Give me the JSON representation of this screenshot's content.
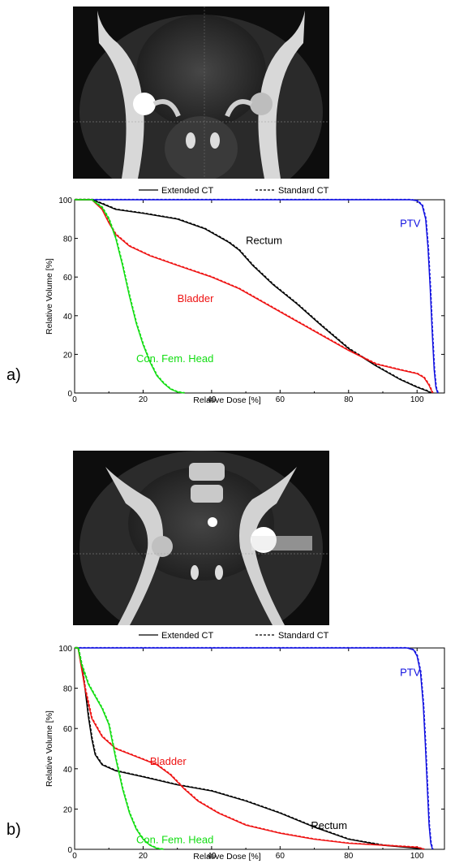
{
  "colors": {
    "PTV": "#1010e0",
    "Rectum": "#000000",
    "Bladder": "#ee1111",
    "Con. Fem. Head": "#11dd11"
  },
  "images": {
    "a": {
      "description_icon": "ct-coronal-scan-icon"
    },
    "b": {
      "description_icon": "ct-coronal-scan-icon"
    }
  },
  "chart_data": [
    {
      "type": "line",
      "panel_label": "a)",
      "xlabel": "Relative Dose [%]",
      "ylabel": "Relative Volume [%]",
      "xlim": [
        0,
        108
      ],
      "ylim": [
        0,
        100
      ],
      "xticks": [
        0,
        20,
        40,
        60,
        80,
        100
      ],
      "yticks": [
        0,
        20,
        40,
        60,
        80,
        100
      ],
      "legend": [
        {
          "label": "Extended CT",
          "style": "solid"
        },
        {
          "label": "Standard CT",
          "style": "dashed"
        }
      ],
      "series": [
        {
          "name": "PTV",
          "label_pos": [
            95,
            86
          ],
          "points": [
            [
              0,
              100
            ],
            [
              98,
              100
            ],
            [
              100,
              99.5
            ],
            [
              101.5,
              97
            ],
            [
              102.5,
              90
            ],
            [
              103.2,
              75
            ],
            [
              103.8,
              55
            ],
            [
              104.4,
              32
            ],
            [
              105,
              12
            ],
            [
              105.5,
              3
            ],
            [
              106,
              0
            ]
          ]
        },
        {
          "name": "Rectum",
          "label_pos": [
            50,
            77
          ],
          "points": [
            [
              0,
              100
            ],
            [
              5,
              100
            ],
            [
              8,
              98
            ],
            [
              12,
              95
            ],
            [
              20,
              93
            ],
            [
              30,
              90
            ],
            [
              38,
              85
            ],
            [
              45,
              78
            ],
            [
              48,
              74
            ],
            [
              52,
              66
            ],
            [
              58,
              56
            ],
            [
              65,
              46
            ],
            [
              72,
              35
            ],
            [
              80,
              23
            ],
            [
              88,
              14
            ],
            [
              95,
              7
            ],
            [
              100,
              3
            ],
            [
              103,
              1
            ],
            [
              104,
              0
            ]
          ]
        },
        {
          "name": "Bladder",
          "label_pos": [
            30,
            47
          ],
          "points": [
            [
              0,
              100
            ],
            [
              5,
              100
            ],
            [
              8,
              95
            ],
            [
              10,
              88
            ],
            [
              12,
              82
            ],
            [
              16,
              76
            ],
            [
              22,
              71
            ],
            [
              30,
              66
            ],
            [
              40,
              60
            ],
            [
              48,
              54
            ],
            [
              56,
              46
            ],
            [
              64,
              38
            ],
            [
              72,
              30
            ],
            [
              80,
              22
            ],
            [
              88,
              15
            ],
            [
              95,
              12
            ],
            [
              100,
              10
            ],
            [
              102,
              8
            ],
            [
              103.5,
              4
            ],
            [
              104.5,
              0
            ]
          ]
        },
        {
          "name": "Con. Fem. Head",
          "label_pos": [
            18,
            16
          ],
          "points": [
            [
              0,
              100
            ],
            [
              5,
              100
            ],
            [
              8,
              96
            ],
            [
              10,
              90
            ],
            [
              12,
              80
            ],
            [
              14,
              66
            ],
            [
              16,
              50
            ],
            [
              18,
              36
            ],
            [
              20,
              25
            ],
            [
              22,
              16
            ],
            [
              24,
              9
            ],
            [
              26,
              5
            ],
            [
              28,
              2
            ],
            [
              30,
              0.5
            ],
            [
              32,
              0
            ]
          ]
        }
      ]
    },
    {
      "type": "line",
      "panel_label": "b)",
      "xlabel": "Relative Dose [%]",
      "ylabel": "Relative Volume [%]",
      "xlim": [
        0,
        108
      ],
      "ylim": [
        0,
        100
      ],
      "xticks": [
        0,
        20,
        40,
        60,
        80,
        100
      ],
      "yticks": [
        0,
        20,
        40,
        60,
        80,
        100
      ],
      "legend": [
        {
          "label": "Extended CT",
          "style": "solid"
        },
        {
          "label": "Standard CT",
          "style": "dashed"
        }
      ],
      "series": [
        {
          "name": "PTV",
          "label_pos": [
            95,
            86
          ],
          "points": [
            [
              0,
              100
            ],
            [
              97,
              100
            ],
            [
              99,
              99
            ],
            [
              100,
              96
            ],
            [
              101,
              88
            ],
            [
              101.8,
              72
            ],
            [
              102.4,
              52
            ],
            [
              103,
              30
            ],
            [
              103.5,
              12
            ],
            [
              104,
              3
            ],
            [
              104.5,
              0
            ]
          ]
        },
        {
          "name": "Rectum",
          "label_pos": [
            69,
            10
          ],
          "points": [
            [
              0,
              100
            ],
            [
              1,
              100
            ],
            [
              2,
              92
            ],
            [
              3,
              80
            ],
            [
              4,
              66
            ],
            [
              5,
              55
            ],
            [
              6,
              47
            ],
            [
              8,
              42
            ],
            [
              12,
              39
            ],
            [
              20,
              36
            ],
            [
              30,
              32
            ],
            [
              40,
              29
            ],
            [
              50,
              24
            ],
            [
              60,
              18
            ],
            [
              70,
              11
            ],
            [
              80,
              5
            ],
            [
              90,
              2
            ],
            [
              100,
              0.5
            ],
            [
              102,
              0
            ]
          ]
        },
        {
          "name": "Bladder",
          "label_pos": [
            22,
            42
          ],
          "points": [
            [
              0,
              100
            ],
            [
              1,
              100
            ],
            [
              2,
              90
            ],
            [
              3,
              80
            ],
            [
              5,
              65
            ],
            [
              8,
              56
            ],
            [
              12,
              50
            ],
            [
              18,
              46
            ],
            [
              24,
              42
            ],
            [
              28,
              37
            ],
            [
              32,
              30
            ],
            [
              36,
              24
            ],
            [
              42,
              18
            ],
            [
              50,
              12
            ],
            [
              60,
              8
            ],
            [
              70,
              5
            ],
            [
              80,
              3
            ],
            [
              90,
              2
            ],
            [
              100,
              1
            ],
            [
              102,
              0
            ]
          ]
        },
        {
          "name": "Con. Fem. Head",
          "label_pos": [
            18,
            3
          ],
          "points": [
            [
              0,
              100
            ],
            [
              1,
              100
            ],
            [
              2,
              92
            ],
            [
              4,
              82
            ],
            [
              6,
              76
            ],
            [
              8,
              70
            ],
            [
              10,
              62
            ],
            [
              12,
              45
            ],
            [
              14,
              30
            ],
            [
              16,
              18
            ],
            [
              18,
              10
            ],
            [
              20,
              5
            ],
            [
              22,
              2
            ],
            [
              24,
              0.5
            ],
            [
              26,
              0
            ]
          ]
        }
      ]
    }
  ]
}
